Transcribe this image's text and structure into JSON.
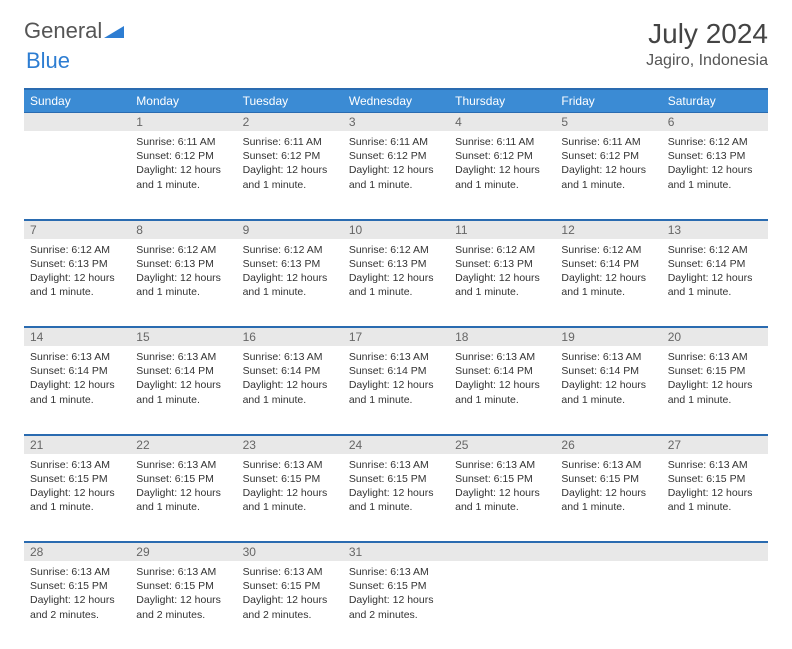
{
  "brand": {
    "part1": "General",
    "part2": "Blue"
  },
  "title": "July 2024",
  "location": "Jagiro, Indonesia",
  "day_headers": [
    "Sunday",
    "Monday",
    "Tuesday",
    "Wednesday",
    "Thursday",
    "Friday",
    "Saturday"
  ],
  "colors": {
    "header_bg": "#3b8bd4",
    "header_border": "#2a6bb0",
    "daynum_bg": "#e8e8e8",
    "brand_blue": "#2d7dd2"
  },
  "weeks": [
    [
      {
        "n": "",
        "sunrise": "",
        "sunset": "",
        "daylight": ""
      },
      {
        "n": "1",
        "sunrise": "Sunrise: 6:11 AM",
        "sunset": "Sunset: 6:12 PM",
        "daylight": "Daylight: 12 hours and 1 minute."
      },
      {
        "n": "2",
        "sunrise": "Sunrise: 6:11 AM",
        "sunset": "Sunset: 6:12 PM",
        "daylight": "Daylight: 12 hours and 1 minute."
      },
      {
        "n": "3",
        "sunrise": "Sunrise: 6:11 AM",
        "sunset": "Sunset: 6:12 PM",
        "daylight": "Daylight: 12 hours and 1 minute."
      },
      {
        "n": "4",
        "sunrise": "Sunrise: 6:11 AM",
        "sunset": "Sunset: 6:12 PM",
        "daylight": "Daylight: 12 hours and 1 minute."
      },
      {
        "n": "5",
        "sunrise": "Sunrise: 6:11 AM",
        "sunset": "Sunset: 6:12 PM",
        "daylight": "Daylight: 12 hours and 1 minute."
      },
      {
        "n": "6",
        "sunrise": "Sunrise: 6:12 AM",
        "sunset": "Sunset: 6:13 PM",
        "daylight": "Daylight: 12 hours and 1 minute."
      }
    ],
    [
      {
        "n": "7",
        "sunrise": "Sunrise: 6:12 AM",
        "sunset": "Sunset: 6:13 PM",
        "daylight": "Daylight: 12 hours and 1 minute."
      },
      {
        "n": "8",
        "sunrise": "Sunrise: 6:12 AM",
        "sunset": "Sunset: 6:13 PM",
        "daylight": "Daylight: 12 hours and 1 minute."
      },
      {
        "n": "9",
        "sunrise": "Sunrise: 6:12 AM",
        "sunset": "Sunset: 6:13 PM",
        "daylight": "Daylight: 12 hours and 1 minute."
      },
      {
        "n": "10",
        "sunrise": "Sunrise: 6:12 AM",
        "sunset": "Sunset: 6:13 PM",
        "daylight": "Daylight: 12 hours and 1 minute."
      },
      {
        "n": "11",
        "sunrise": "Sunrise: 6:12 AM",
        "sunset": "Sunset: 6:13 PM",
        "daylight": "Daylight: 12 hours and 1 minute."
      },
      {
        "n": "12",
        "sunrise": "Sunrise: 6:12 AM",
        "sunset": "Sunset: 6:14 PM",
        "daylight": "Daylight: 12 hours and 1 minute."
      },
      {
        "n": "13",
        "sunrise": "Sunrise: 6:12 AM",
        "sunset": "Sunset: 6:14 PM",
        "daylight": "Daylight: 12 hours and 1 minute."
      }
    ],
    [
      {
        "n": "14",
        "sunrise": "Sunrise: 6:13 AM",
        "sunset": "Sunset: 6:14 PM",
        "daylight": "Daylight: 12 hours and 1 minute."
      },
      {
        "n": "15",
        "sunrise": "Sunrise: 6:13 AM",
        "sunset": "Sunset: 6:14 PM",
        "daylight": "Daylight: 12 hours and 1 minute."
      },
      {
        "n": "16",
        "sunrise": "Sunrise: 6:13 AM",
        "sunset": "Sunset: 6:14 PM",
        "daylight": "Daylight: 12 hours and 1 minute."
      },
      {
        "n": "17",
        "sunrise": "Sunrise: 6:13 AM",
        "sunset": "Sunset: 6:14 PM",
        "daylight": "Daylight: 12 hours and 1 minute."
      },
      {
        "n": "18",
        "sunrise": "Sunrise: 6:13 AM",
        "sunset": "Sunset: 6:14 PM",
        "daylight": "Daylight: 12 hours and 1 minute."
      },
      {
        "n": "19",
        "sunrise": "Sunrise: 6:13 AM",
        "sunset": "Sunset: 6:14 PM",
        "daylight": "Daylight: 12 hours and 1 minute."
      },
      {
        "n": "20",
        "sunrise": "Sunrise: 6:13 AM",
        "sunset": "Sunset: 6:15 PM",
        "daylight": "Daylight: 12 hours and 1 minute."
      }
    ],
    [
      {
        "n": "21",
        "sunrise": "Sunrise: 6:13 AM",
        "sunset": "Sunset: 6:15 PM",
        "daylight": "Daylight: 12 hours and 1 minute."
      },
      {
        "n": "22",
        "sunrise": "Sunrise: 6:13 AM",
        "sunset": "Sunset: 6:15 PM",
        "daylight": "Daylight: 12 hours and 1 minute."
      },
      {
        "n": "23",
        "sunrise": "Sunrise: 6:13 AM",
        "sunset": "Sunset: 6:15 PM",
        "daylight": "Daylight: 12 hours and 1 minute."
      },
      {
        "n": "24",
        "sunrise": "Sunrise: 6:13 AM",
        "sunset": "Sunset: 6:15 PM",
        "daylight": "Daylight: 12 hours and 1 minute."
      },
      {
        "n": "25",
        "sunrise": "Sunrise: 6:13 AM",
        "sunset": "Sunset: 6:15 PM",
        "daylight": "Daylight: 12 hours and 1 minute."
      },
      {
        "n": "26",
        "sunrise": "Sunrise: 6:13 AM",
        "sunset": "Sunset: 6:15 PM",
        "daylight": "Daylight: 12 hours and 1 minute."
      },
      {
        "n": "27",
        "sunrise": "Sunrise: 6:13 AM",
        "sunset": "Sunset: 6:15 PM",
        "daylight": "Daylight: 12 hours and 1 minute."
      }
    ],
    [
      {
        "n": "28",
        "sunrise": "Sunrise: 6:13 AM",
        "sunset": "Sunset: 6:15 PM",
        "daylight": "Daylight: 12 hours and 2 minutes."
      },
      {
        "n": "29",
        "sunrise": "Sunrise: 6:13 AM",
        "sunset": "Sunset: 6:15 PM",
        "daylight": "Daylight: 12 hours and 2 minutes."
      },
      {
        "n": "30",
        "sunrise": "Sunrise: 6:13 AM",
        "sunset": "Sunset: 6:15 PM",
        "daylight": "Daylight: 12 hours and 2 minutes."
      },
      {
        "n": "31",
        "sunrise": "Sunrise: 6:13 AM",
        "sunset": "Sunset: 6:15 PM",
        "daylight": "Daylight: 12 hours and 2 minutes."
      },
      {
        "n": "",
        "sunrise": "",
        "sunset": "",
        "daylight": ""
      },
      {
        "n": "",
        "sunrise": "",
        "sunset": "",
        "daylight": ""
      },
      {
        "n": "",
        "sunrise": "",
        "sunset": "",
        "daylight": ""
      }
    ]
  ]
}
